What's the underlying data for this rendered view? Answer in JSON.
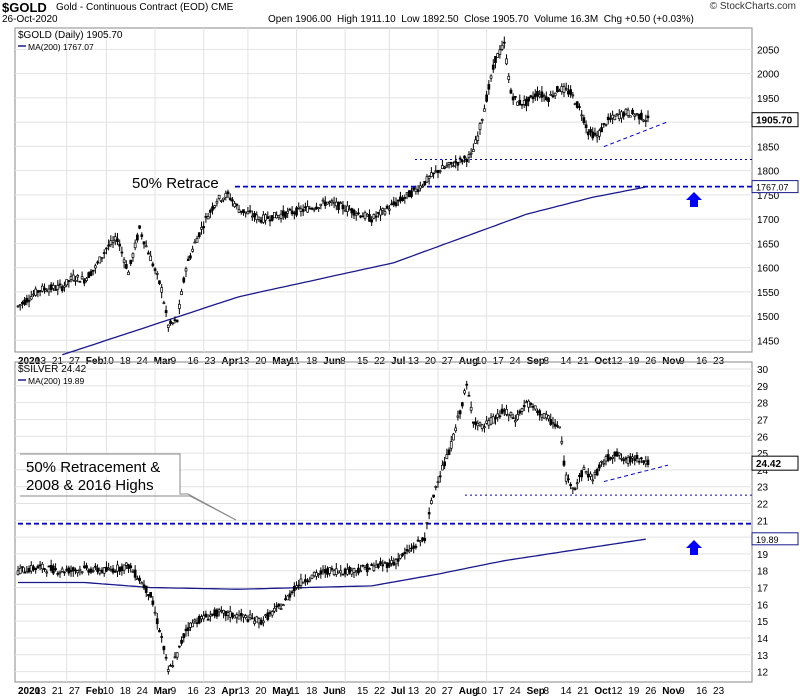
{
  "header": {
    "symbol": "$GOLD",
    "description": "Gold - Continuous Contract (EOD)  CME",
    "date": "26-Oct-2020",
    "open_label": "Open",
    "open": "1906.00",
    "high_label": "High",
    "high": "1911.10",
    "low_label": "Low",
    "low": "1892.50",
    "close_label": "Close",
    "close": "1905.70",
    "volume_label": "Volume",
    "volume": "16.3M",
    "chg_label": "Chg",
    "chg": "+0.50 (+0.03%)",
    "brand": "© StockCharts.com"
  },
  "colors": {
    "candle": "#000000",
    "ma": "#1a1a8c",
    "support": "#0000cc",
    "arrow": "#0000ff"
  },
  "x_axis_labels": [
    "2020",
    "13",
    "21",
    "27",
    "Feb",
    "10",
    "18",
    "24",
    "Mar",
    "9",
    "16",
    "23",
    "Apr",
    "13",
    "20",
    "May",
    "11",
    "18",
    "Jun",
    "8",
    "15",
    "22",
    "Jul",
    "13",
    "20",
    "27",
    "Aug",
    "10",
    "17",
    "24",
    "Sep",
    "8",
    "14",
    "21",
    "Oct",
    "12",
    "19",
    "26",
    "Nov",
    "9",
    "16",
    "23"
  ],
  "chart_data": [
    {
      "type": "candlestick",
      "legend": [
        "$GOLD (Daily) 1905.70",
        "MA(200) 1767.07"
      ],
      "ylim": [
        1430,
        2090
      ],
      "y_ticks": [
        1450,
        1500,
        1550,
        1600,
        1650,
        1700,
        1750,
        1800,
        1850,
        1900,
        1950,
        2000,
        2050
      ],
      "last_close_label": "1905.70",
      "ma_label": "1767.07",
      "annotation": "50% Retrace",
      "support_lines": [
        1767,
        1823
      ],
      "price_path": [
        [
          0,
          1520
        ],
        [
          10,
          1555
        ],
        [
          20,
          1560
        ],
        [
          25,
          1580
        ],
        [
          30,
          1575
        ],
        [
          35,
          1600
        ],
        [
          40,
          1640
        ],
        [
          45,
          1660
        ],
        [
          50,
          1590
        ],
        [
          55,
          1680
        ],
        [
          60,
          1620
        ],
        [
          65,
          1555
        ],
        [
          68,
          1480
        ],
        [
          72,
          1490
        ],
        [
          76,
          1600
        ],
        [
          80,
          1650
        ],
        [
          85,
          1700
        ],
        [
          90,
          1740
        ],
        [
          95,
          1750
        ],
        [
          100,
          1720
        ],
        [
          110,
          1700
        ],
        [
          120,
          1710
        ],
        [
          130,
          1720
        ],
        [
          140,
          1735
        ],
        [
          150,
          1720
        ],
        [
          160,
          1700
        ],
        [
          170,
          1730
        ],
        [
          180,
          1760
        ],
        [
          185,
          1780
        ],
        [
          190,
          1800
        ],
        [
          195,
          1810
        ],
        [
          200,
          1820
        ],
        [
          205,
          1830
        ],
        [
          208,
          1870
        ],
        [
          212,
          1950
        ],
        [
          216,
          2030
        ],
        [
          220,
          2060
        ],
        [
          223,
          1960
        ],
        [
          226,
          1940
        ],
        [
          230,
          1940
        ],
        [
          235,
          1960
        ],
        [
          240,
          1950
        ],
        [
          245,
          1970
        ],
        [
          250,
          1960
        ],
        [
          255,
          1920
        ],
        [
          258,
          1880
        ],
        [
          262,
          1870
        ],
        [
          266,
          1900
        ],
        [
          270,
          1910
        ],
        [
          275,
          1920
        ],
        [
          280,
          1915
        ],
        [
          285,
          1905
        ]
      ],
      "ma_path": [
        [
          20,
          1420
        ],
        [
          60,
          1480
        ],
        [
          100,
          1540
        ],
        [
          140,
          1580
        ],
        [
          170,
          1610
        ],
        [
          200,
          1660
        ],
        [
          230,
          1710
        ],
        [
          260,
          1745
        ],
        [
          285,
          1767
        ]
      ]
    },
    {
      "type": "candlestick",
      "legend": [
        "$SILVER 24.42",
        "MA(200) 19.89"
      ],
      "ylim": [
        11.5,
        30.3
      ],
      "y_ticks": [
        12,
        13,
        14,
        15,
        16,
        17,
        18,
        19,
        20,
        21,
        22,
        23,
        24,
        25,
        26,
        27,
        28,
        29,
        30
      ],
      "last_close_label": "24.42",
      "ma_label": "19.89",
      "annotation": [
        "50% Retracement &",
        "2008 & 2016 Highs"
      ],
      "support_lines": [
        20.8,
        22.5
      ],
      "price_path": [
        [
          0,
          18.0
        ],
        [
          10,
          18.2
        ],
        [
          20,
          18.0
        ],
        [
          30,
          18.1
        ],
        [
          40,
          18.0
        ],
        [
          50,
          18.3
        ],
        [
          55,
          17.5
        ],
        [
          60,
          16.5
        ],
        [
          65,
          14.0
        ],
        [
          68,
          12.0
        ],
        [
          72,
          13.0
        ],
        [
          76,
          14.5
        ],
        [
          80,
          15.0
        ],
        [
          90,
          15.5
        ],
        [
          100,
          15.3
        ],
        [
          110,
          15.0
        ],
        [
          115,
          15.5
        ],
        [
          120,
          16.0
        ],
        [
          125,
          17.0
        ],
        [
          130,
          17.5
        ],
        [
          140,
          18.0
        ],
        [
          150,
          18.0
        ],
        [
          160,
          18.2
        ],
        [
          170,
          18.5
        ],
        [
          175,
          19.0
        ],
        [
          180,
          19.5
        ],
        [
          184,
          20.0
        ],
        [
          187,
          22.0
        ],
        [
          190,
          23.5
        ],
        [
          195,
          25.0
        ],
        [
          200,
          27.5
        ],
        [
          203,
          29.0
        ],
        [
          206,
          27.0
        ],
        [
          210,
          26.5
        ],
        [
          215,
          27.0
        ],
        [
          220,
          27.5
        ],
        [
          225,
          27.0
        ],
        [
          230,
          28.0
        ],
        [
          235,
          27.5
        ],
        [
          240,
          27.0
        ],
        [
          245,
          26.5
        ],
        [
          248,
          23.5
        ],
        [
          252,
          23.0
        ],
        [
          256,
          24.0
        ],
        [
          260,
          23.5
        ],
        [
          265,
          24.5
        ],
        [
          270,
          25.0
        ],
        [
          275,
          24.5
        ],
        [
          280,
          24.8
        ],
        [
          285,
          24.4
        ]
      ],
      "ma_path": [
        [
          0,
          17.3
        ],
        [
          30,
          17.3
        ],
        [
          60,
          17.0
        ],
        [
          100,
          16.9
        ],
        [
          130,
          17.0
        ],
        [
          160,
          17.1
        ],
        [
          190,
          17.8
        ],
        [
          220,
          18.6
        ],
        [
          250,
          19.2
        ],
        [
          285,
          19.9
        ]
      ]
    }
  ]
}
